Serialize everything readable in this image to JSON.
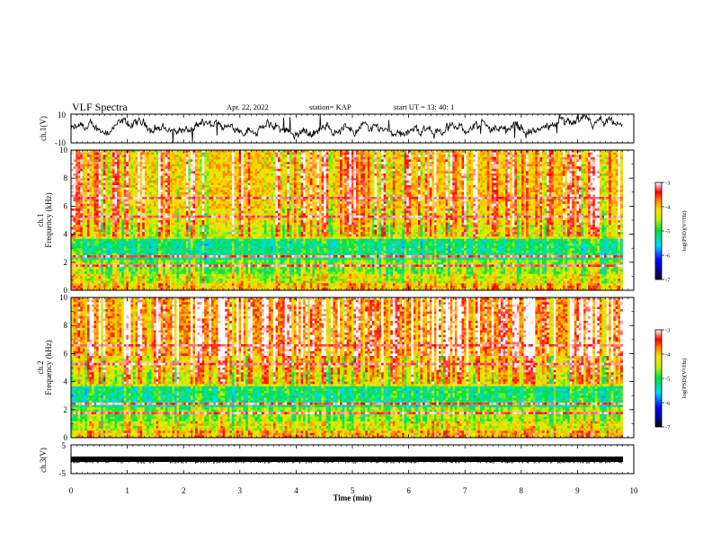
{
  "header": {
    "title": "VLF Spectra",
    "date": "Apr. 22, 2022",
    "station": "station= KAP",
    "start": "start UT = 13: 40: 1"
  },
  "chart_data": [
    {
      "type": "line",
      "name": "ch1-waveform",
      "ylabel": "ch.1(V)",
      "ylim": [
        -10,
        10
      ],
      "yticks": [
        "10",
        "-10"
      ],
      "xlim": [
        0,
        10
      ]
    },
    {
      "type": "heatmap",
      "name": "ch1-spectrogram",
      "ylabel_line1": "ch.1",
      "ylabel_line2": "Frequency (kHz)",
      "ylim": [
        0,
        10
      ],
      "yticks": [
        "0",
        "2",
        "4",
        "6",
        "8",
        "10"
      ],
      "xlim": [
        0,
        10
      ],
      "data_end_min": 9.8,
      "colorbar": {
        "label": "log(PSD)(V²/Hz)",
        "ticks": [
          "-3",
          "-4",
          "-5",
          "-6",
          "-7"
        ],
        "range": [
          -7,
          -3
        ]
      }
    },
    {
      "type": "heatmap",
      "name": "ch2-spectrogram",
      "ylabel_line1": "ch.2",
      "ylabel_line2": "Frequency (kHz)",
      "ylim": [
        0,
        10
      ],
      "yticks": [
        "0",
        "2",
        "4",
        "6",
        "8",
        "10"
      ],
      "xlim": [
        0,
        10
      ],
      "data_end_min": 9.8,
      "colorbar": {
        "label": "log(PSD)(V²/Hz)",
        "ticks": [
          "-3",
          "-4",
          "-5",
          "-6",
          "-7"
        ],
        "range": [
          -7,
          -3
        ]
      }
    },
    {
      "type": "line",
      "name": "ch3-waveform",
      "ylabel": "ch.3(V)",
      "ylim": [
        -5,
        5
      ],
      "yticks": [
        "5",
        "-5"
      ],
      "xlim": [
        0,
        10
      ]
    }
  ],
  "xaxis": {
    "label": "Time (min)",
    "ticks": [
      "0",
      "1",
      "2",
      "3",
      "4",
      "5",
      "6",
      "7",
      "8",
      "9",
      "10"
    ]
  }
}
